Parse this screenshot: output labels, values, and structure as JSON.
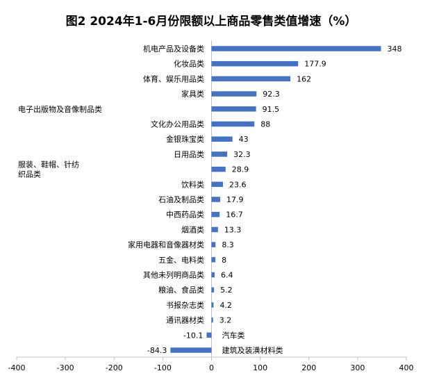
{
  "chart_data": {
    "type": "bar",
    "orientation": "horizontal",
    "title": "图2 2024年1-6月份限额以上商品零售类值增速（%）",
    "categories": [
      "机电产品及设备类",
      "化妆品类",
      "体育、娱乐用品类",
      "家具类",
      "电子出版物及音像制品类",
      "文化办公用品类",
      "金银珠宝类",
      "日用品类",
      "服装、鞋帽、针纺织品类",
      "饮料类",
      "石油及制品类",
      "中西药品类",
      "烟酒类",
      "家用电器和音像器材类",
      "五金、电料类",
      "其他未列明商品类",
      "粮油、食品类",
      "书报杂志类",
      "通讯器材类",
      "汽车类",
      "建筑及装潢材料类"
    ],
    "category_lines": [
      [
        "机电产品及设备类"
      ],
      [
        "化妆品类"
      ],
      [
        "体育、娱乐用品类"
      ],
      [
        "家具类"
      ],
      [
        "电子出版物及音像制品类"
      ],
      [
        "文化办公用品类"
      ],
      [
        "金银珠宝类"
      ],
      [
        "日用品类"
      ],
      [
        "服装、鞋帽、针纺",
        "织品类"
      ],
      [
        "饮料类"
      ],
      [
        "石油及制品类"
      ],
      [
        "中西药品类"
      ],
      [
        "烟酒类"
      ],
      [
        "家用电器和音像器材类"
      ],
      [
        "五金、电料类"
      ],
      [
        "其他未列明商品类"
      ],
      [
        "粮油、食品类"
      ],
      [
        "书报杂志类"
      ],
      [
        "通讯器材类"
      ],
      [
        "汽车类"
      ],
      [
        "建筑及装潢材料类"
      ]
    ],
    "values": [
      348,
      177.9,
      162,
      92.3,
      91.5,
      88,
      43,
      32.3,
      28.9,
      23.6,
      17.9,
      16.7,
      13.3,
      8.3,
      8,
      6.4,
      5.2,
      4.2,
      3.2,
      -10.1,
      -84.3
    ],
    "value_labels": [
      "348",
      "177.9",
      "162",
      "92.3",
      "91.5",
      "88",
      "43",
      "32.3",
      "28.9",
      "23.6",
      "17.9",
      "16.7",
      "13.3",
      "8.3",
      "8",
      "6.4",
      "5.2",
      "4.2",
      "3.2",
      "-10.1",
      "-84.3"
    ],
    "xlim": [
      -400,
      400
    ],
    "xticks": [
      -400,
      -300,
      -200,
      -100,
      0,
      100,
      200,
      300,
      400
    ],
    "xlabel": "",
    "ylabel": "",
    "grid": false,
    "legend": "none",
    "bar_color": "#4472C4"
  }
}
